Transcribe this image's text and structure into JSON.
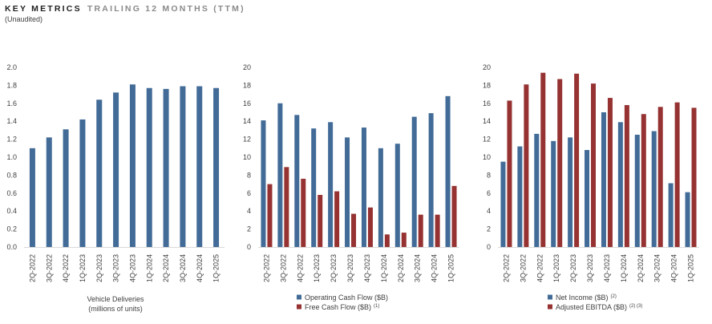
{
  "header": {
    "title": "KEY METRICS",
    "title_suffix": "TRAILING 12 MONTHS (TTM)",
    "subtitle": "(Unaudited)"
  },
  "colors": {
    "blue": "#426b97",
    "red": "#963232",
    "text": "#404040"
  },
  "chart_data": [
    {
      "type": "bar",
      "categories": [
        "2Q-2022",
        "3Q-2022",
        "4Q-2022",
        "1Q-2023",
        "2Q-2023",
        "3Q-2023",
        "4Q-2023",
        "1Q-2024",
        "2Q-2024",
        "3Q-2024",
        "4Q-2024",
        "1Q-2025"
      ],
      "series": [
        {
          "name": "Vehicle Deliveries",
          "color": "#426b97",
          "values": [
            1.1,
            1.22,
            1.31,
            1.42,
            1.64,
            1.72,
            1.81,
            1.77,
            1.76,
            1.79,
            1.79,
            1.77
          ]
        }
      ],
      "ylim": [
        0,
        2.0
      ],
      "yticks": [
        "0.0",
        "0.2",
        "0.4",
        "0.6",
        "0.8",
        "1.0",
        "1.2",
        "1.4",
        "1.6",
        "1.8",
        "2.0"
      ],
      "caption_lines": [
        "Vehicle Deliveries",
        "(millions of units)"
      ],
      "legend": []
    },
    {
      "type": "bar",
      "categories": [
        "2Q-2022",
        "3Q-2022",
        "4Q-2022",
        "1Q-2023",
        "2Q-2023",
        "3Q-2023",
        "4Q-2023",
        "1Q-2024",
        "2Q-2024",
        "3Q-2024",
        "4Q-2024",
        "1Q-2025"
      ],
      "series": [
        {
          "name": "Operating Cash Flow ($B)",
          "color": "#426b97",
          "values": [
            14.1,
            16.0,
            14.7,
            13.2,
            13.9,
            12.2,
            13.3,
            11.0,
            11.5,
            14.5,
            14.9,
            16.8
          ]
        },
        {
          "name": "Free Cash Flow ($B)",
          "sup": "(1)",
          "color": "#963232",
          "values": [
            7.0,
            8.9,
            7.6,
            5.8,
            6.2,
            3.7,
            4.4,
            1.4,
            1.6,
            3.6,
            3.6,
            6.8
          ]
        }
      ],
      "ylim": [
        0,
        20
      ],
      "yticks": [
        "0",
        "2",
        "4",
        "6",
        "8",
        "10",
        "12",
        "14",
        "16",
        "18",
        "20"
      ],
      "caption_lines": [],
      "legend": [
        {
          "text": "Operating Cash Flow ($B)",
          "sup": "",
          "color": "#426b97"
        },
        {
          "text": "Free Cash Flow ($B)",
          "sup": "(1)",
          "color": "#963232"
        }
      ]
    },
    {
      "type": "bar",
      "categories": [
        "2Q-2022",
        "3Q-2022",
        "4Q-2022",
        "1Q-2023",
        "2Q-2023",
        "3Q-2023",
        "4Q-2023",
        "1Q-2024",
        "2Q-2024",
        "3Q-2024",
        "4Q-2024",
        "1Q-2025"
      ],
      "series": [
        {
          "name": "Net Income ($B)",
          "sup": "(2)",
          "color": "#426b97",
          "values": [
            9.5,
            11.2,
            12.6,
            11.8,
            12.2,
            10.8,
            15.0,
            13.9,
            12.5,
            12.9,
            7.1,
            6.1
          ]
        },
        {
          "name": "Adjusted EBITDA ($B)",
          "sup": "(2) (3)",
          "color": "#963232",
          "values": [
            16.3,
            18.1,
            19.4,
            18.7,
            19.3,
            18.2,
            16.6,
            15.8,
            14.8,
            15.6,
            16.1,
            15.5
          ]
        }
      ],
      "ylim": [
        0,
        20
      ],
      "yticks": [
        "0",
        "2",
        "4",
        "6",
        "8",
        "10",
        "12",
        "14",
        "16",
        "18",
        "20"
      ],
      "caption_lines": [],
      "legend": [
        {
          "text": "Net Income ($B)",
          "sup": "(2)",
          "color": "#426b97"
        },
        {
          "text": "Adjusted EBITDA ($B)",
          "sup": "(2) (3)",
          "color": "#963232"
        }
      ]
    }
  ]
}
